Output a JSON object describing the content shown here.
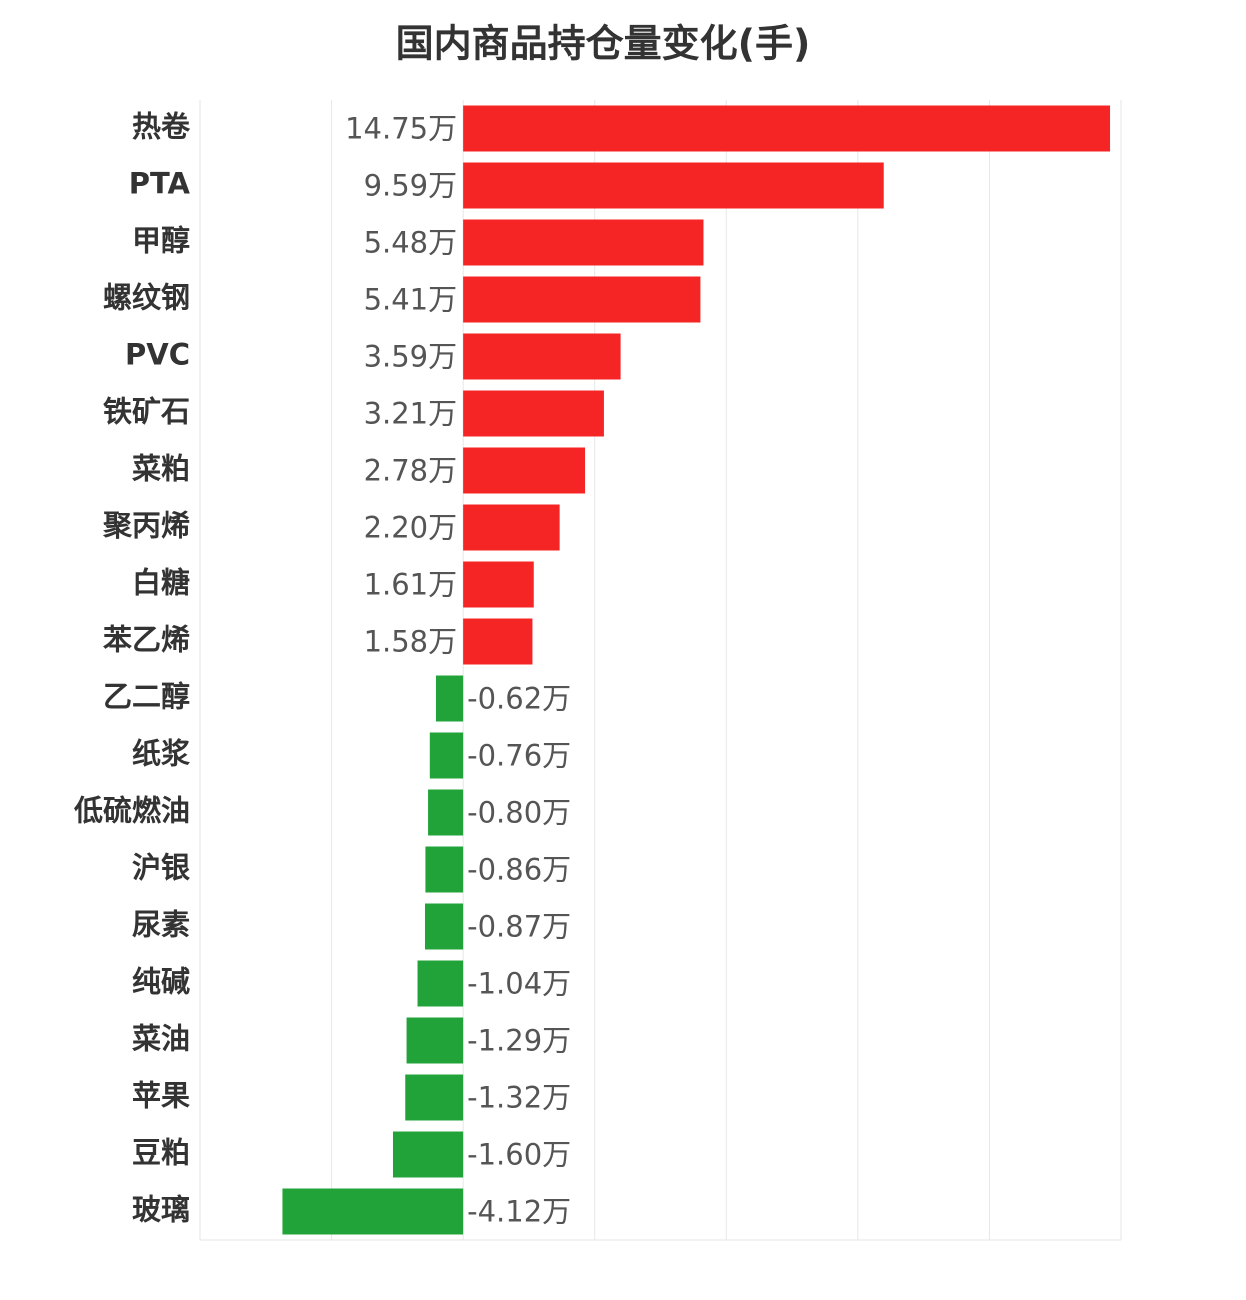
{
  "chart_data": {
    "type": "barh",
    "title": "国内商品持仓量变化(手)",
    "categories": [
      "热卷",
      "PTA",
      "甲醇",
      "螺纹钢",
      "PVC",
      "铁矿石",
      "菜粕",
      "聚丙烯",
      "白糖",
      "苯乙烯",
      "乙二醇",
      "纸浆",
      "低硫燃油",
      "沪银",
      "尿素",
      "纯碱",
      "菜油",
      "苹果",
      "豆粕",
      "玻璃"
    ],
    "values": [
      14.75,
      9.59,
      5.48,
      5.41,
      3.59,
      3.21,
      2.78,
      2.2,
      1.61,
      1.58,
      -0.62,
      -0.76,
      -0.8,
      -0.86,
      -0.87,
      -1.04,
      -1.29,
      -1.32,
      -1.6,
      -4.12
    ],
    "value_labels": [
      "14.75万",
      "9.59万",
      "5.48万",
      "5.41万",
      "3.59万",
      "3.21万",
      "2.78万",
      "2.20万",
      "1.61万",
      "1.58万",
      "-0.62万",
      "-0.76万",
      "-0.80万",
      "-0.86万",
      "-0.87万",
      "-1.04万",
      "-1.29万",
      "-1.32万",
      "-1.60万",
      "-4.12万"
    ],
    "color_positive": "#f52525",
    "color_negative": "#21a33a",
    "xlim": [
      -6,
      15
    ],
    "xticks": [
      -6,
      -3,
      0,
      3,
      6,
      9,
      12,
      15
    ],
    "grid": true
  }
}
